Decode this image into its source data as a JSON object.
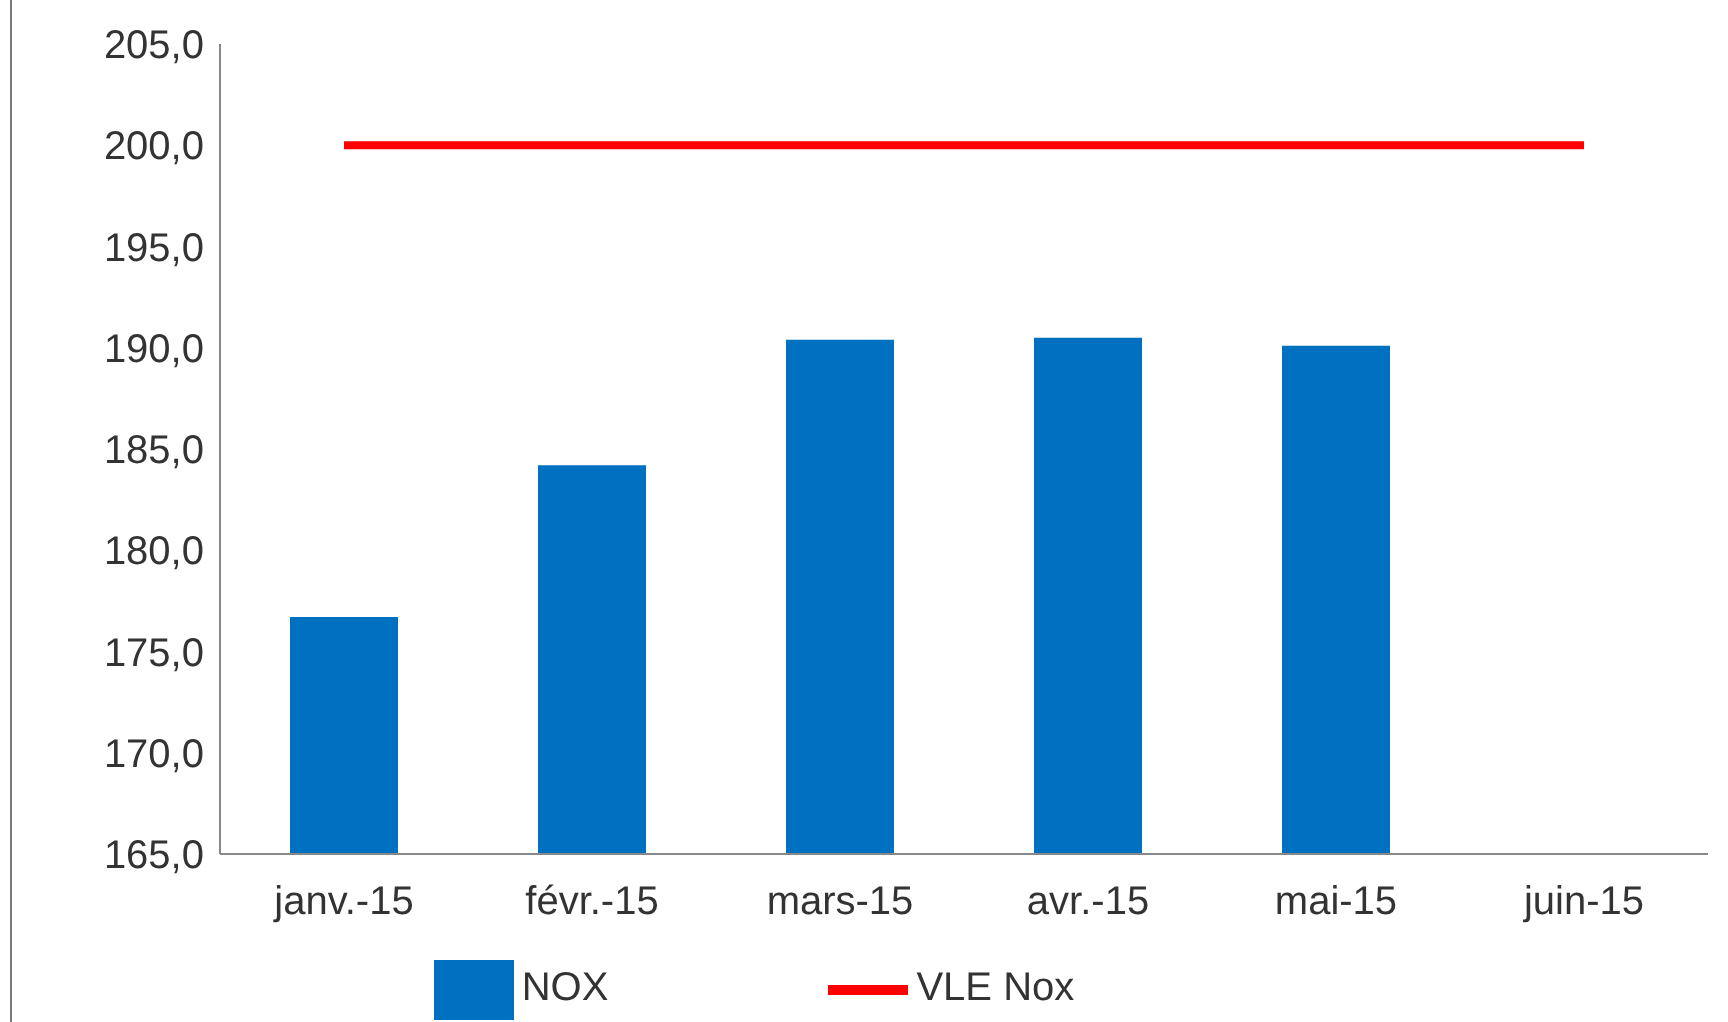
{
  "chart_data": {
    "type": "bar",
    "categories": [
      "janv.-15",
      "févr.-15",
      "mars-15",
      "avr.-15",
      "mai-15",
      "juin-15"
    ],
    "series": [
      {
        "name": "NOX",
        "color": "#0070c0",
        "values": [
          176.7,
          184.2,
          190.4,
          190.5,
          190.1,
          null
        ]
      },
      {
        "name": "VLE Nox",
        "type": "line",
        "color": "#ff0000",
        "values": [
          200,
          200,
          200,
          200,
          200,
          200
        ]
      }
    ],
    "ylim": [
      165,
      205
    ],
    "yticks": [
      {
        "value": 165,
        "label": "165,0"
      },
      {
        "value": 170,
        "label": "170,0"
      },
      {
        "value": 175,
        "label": "175,0"
      },
      {
        "value": 180,
        "label": "180,0"
      },
      {
        "value": 185,
        "label": "185,0"
      },
      {
        "value": 190,
        "label": "190,0"
      },
      {
        "value": 195,
        "label": "195,0"
      },
      {
        "value": 200,
        "label": "200,0"
      },
      {
        "value": 205,
        "label": "205,0"
      }
    ],
    "grid": false,
    "legend": "bottom",
    "marker": "none"
  }
}
